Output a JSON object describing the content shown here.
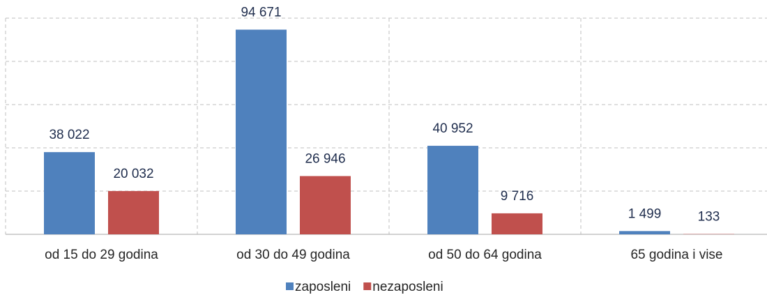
{
  "chart_data": {
    "type": "bar",
    "categories": [
      "od 15 do 29 godina",
      "od 30 do 49 godina",
      "od 50 do 64 godina",
      "65 godina i vise"
    ],
    "series": [
      {
        "name": "zaposleni",
        "color": "#4f81bd",
        "values": [
          38022,
          94671,
          40952,
          1499
        ],
        "value_labels": [
          "38 022",
          "94 671",
          "40 952",
          "1 499"
        ]
      },
      {
        "name": "nezaposleni",
        "color": "#c0504d",
        "values": [
          20032,
          26946,
          9716,
          133
        ],
        "value_labels": [
          "20 032",
          "26 946",
          "9 716",
          "133"
        ]
      }
    ],
    "ylim": [
      0,
      100000
    ],
    "yticks": [
      0,
      20000,
      40000,
      60000,
      80000,
      100000
    ],
    "grid": true,
    "legend": "bottom"
  }
}
